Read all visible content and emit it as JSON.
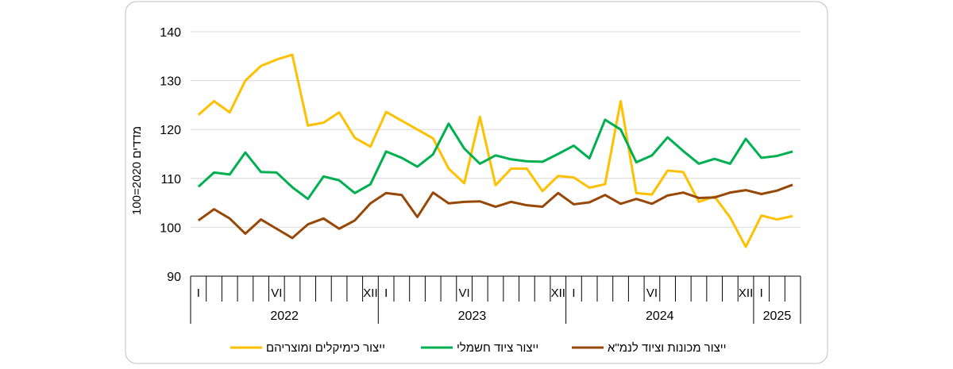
{
  "chart_data": {
    "type": "line",
    "ylabel": "מדדים 2020=100",
    "ylim": [
      90,
      140
    ],
    "yticks": [
      90,
      100,
      110,
      120,
      130,
      140
    ],
    "grid": true,
    "legend_position": "bottom",
    "month_labels": [
      {
        "index": 0,
        "label": "I"
      },
      {
        "index": 5,
        "label": "VI"
      },
      {
        "index": 11,
        "label": "XII"
      },
      {
        "index": 12,
        "label": "I"
      },
      {
        "index": 17,
        "label": "VI"
      },
      {
        "index": 23,
        "label": "XII"
      },
      {
        "index": 24,
        "label": "I"
      },
      {
        "index": 29,
        "label": "VI"
      },
      {
        "index": 35,
        "label": "XII"
      },
      {
        "index": 36,
        "label": "I"
      }
    ],
    "years": [
      {
        "label": "2022",
        "start": 0,
        "months": 12
      },
      {
        "label": "2023",
        "start": 12,
        "months": 12
      },
      {
        "label": "2024",
        "start": 24,
        "months": 12
      },
      {
        "label": "2025",
        "start": 36,
        "months": 3
      }
    ],
    "series": [
      {
        "name": "ייצור כימיקלים ומוצריהם",
        "color": "#FFC000",
        "values": [
          123,
          125.8,
          123.5,
          130,
          133,
          134.3,
          135.3,
          120.8,
          121.4,
          123.5,
          118.3,
          116.5,
          123.6,
          121.8,
          120,
          118.2,
          112,
          109,
          122.6,
          108.6,
          112,
          112,
          107.4,
          110.5,
          110.2,
          108.1,
          108.8,
          125.8,
          107,
          106.7,
          111.6,
          111.3,
          105.2,
          106.3,
          102,
          96,
          102.4,
          101.6,
          102.3
        ]
      },
      {
        "name": "ייצור ציוד חשמלי",
        "color": "#00B050",
        "values": [
          108.3,
          111.2,
          110.8,
          115.3,
          111.3,
          111.2,
          108.2,
          105.8,
          110.4,
          109.6,
          107,
          108.8,
          115.5,
          114.2,
          112.4,
          114.9,
          121.2,
          116.1,
          113,
          114.7,
          113.9,
          113.5,
          113.4,
          115,
          116.7,
          114.1,
          122,
          120,
          113.3,
          114.7,
          118.4,
          115.6,
          113,
          114,
          113,
          118.1,
          114.2,
          114.6,
          115.5
        ]
      },
      {
        "name": "ייצור מכונות וציוד לנמ\"א",
        "color": "#974706",
        "values": [
          101.4,
          103.7,
          101.8,
          98.7,
          101.6,
          99.7,
          97.8,
          100.6,
          101.8,
          99.7,
          101.4,
          104.9,
          107,
          106.6,
          102.1,
          107.1,
          104.9,
          105.2,
          105.3,
          104.2,
          105.2,
          104.5,
          104.2,
          107,
          104.7,
          105.1,
          106.6,
          104.8,
          105.8,
          104.8,
          106.5,
          107.1,
          106,
          106.1,
          107.1,
          107.6,
          106.8,
          107.5,
          108.7
        ]
      }
    ]
  }
}
